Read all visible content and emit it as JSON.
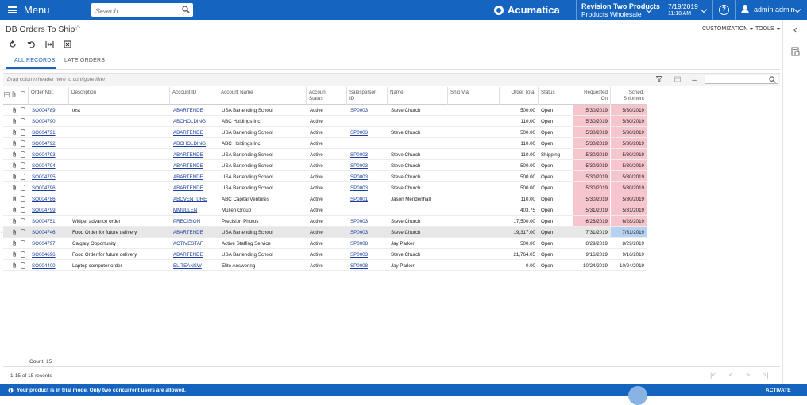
{
  "topbar": {
    "menu_label": "Menu",
    "search_placeholder": "Search...",
    "brand": "Acumatica",
    "tenant": "Revision Two Products",
    "branch": "Products Wholesale",
    "date": "7/19/2019",
    "time": "11:18 AM",
    "help": "?",
    "user": "admin admin"
  },
  "page": {
    "title": "DB Orders To Ship",
    "customization": "CUSTOMIZATION",
    "tools": "TOOLS"
  },
  "tabs": [
    "ALL RECORDS",
    "LATE ORDERS"
  ],
  "filter": {
    "hint": "Drag column header here to configure filter",
    "more": "..."
  },
  "grid": {
    "headers": {
      "order_nbr": "Order Nbr.",
      "description": "Description",
      "account_id": "Account ID",
      "account_name": "Account Name",
      "account_status_1": "Account",
      "account_status_2": "Status",
      "salesperson_1": "Salesperson",
      "salesperson_2": "ID",
      "name": "Name",
      "ship_via": "Ship Via",
      "order_total": "Order Total",
      "status": "Status",
      "requested_1": "Requested",
      "requested_2": "On",
      "sched_1": "Sched.",
      "sched_2": "Shipment"
    },
    "rows": [
      {
        "order": "SO004789",
        "desc": "test",
        "acct": "ABARTENDE",
        "acct_name": "USA Bartending School",
        "acct_status": "Active",
        "sp": "SP0003",
        "name": "Steve Church",
        "total": "500.00",
        "status": "Open",
        "req": "5/30/2019",
        "sched": "5/30/2019",
        "late": true
      },
      {
        "order": "SO004790",
        "desc": "",
        "acct": "ABCHOLDING",
        "acct_name": "ABC Holdings Inc",
        "acct_status": "Active",
        "sp": "",
        "name": "",
        "total": "110.00",
        "status": "Open",
        "req": "5/30/2019",
        "sched": "5/30/2019",
        "late": true
      },
      {
        "order": "SO004791",
        "desc": "",
        "acct": "ABARTENDE",
        "acct_name": "USA Bartending School",
        "acct_status": "Active",
        "sp": "SP0003",
        "name": "Steve Church",
        "total": "500.00",
        "status": "Open",
        "req": "5/30/2019",
        "sched": "5/30/2019",
        "late": true
      },
      {
        "order": "SO004792",
        "desc": "",
        "acct": "ABCHOLDING",
        "acct_name": "ABC Holdings Inc",
        "acct_status": "Active",
        "sp": "",
        "name": "",
        "total": "110.00",
        "status": "Open",
        "req": "5/30/2019",
        "sched": "5/30/2019",
        "late": true
      },
      {
        "order": "SO004793",
        "desc": "",
        "acct": "ABARTENDE",
        "acct_name": "USA Bartending School",
        "acct_status": "Active",
        "sp": "SP0003",
        "name": "Steve Church",
        "total": "110.00",
        "status": "Shipping",
        "req": "5/30/2019",
        "sched": "5/30/2019",
        "late": true
      },
      {
        "order": "SO004794",
        "desc": "",
        "acct": "ABARTENDE",
        "acct_name": "USA Bartending School",
        "acct_status": "Active",
        "sp": "SP0003",
        "name": "Steve Church",
        "total": "500.00",
        "status": "Open",
        "req": "5/30/2019",
        "sched": "5/30/2019",
        "late": true
      },
      {
        "order": "SO004795",
        "desc": "",
        "acct": "ABARTENDE",
        "acct_name": "USA Bartending School",
        "acct_status": "Active",
        "sp": "SP0003",
        "name": "Steve Church",
        "total": "500.00",
        "status": "Open",
        "req": "5/30/2019",
        "sched": "5/30/2019",
        "late": true
      },
      {
        "order": "SO004796",
        "desc": "",
        "acct": "ABARTENDE",
        "acct_name": "USA Bartending School",
        "acct_status": "Active",
        "sp": "SP0003",
        "name": "Steve Church",
        "total": "500.00",
        "status": "Open",
        "req": "5/30/2019",
        "sched": "5/30/2019",
        "late": true
      },
      {
        "order": "SO004786",
        "desc": "",
        "acct": "ABCVENTURE",
        "acct_name": "ABC Capital Ventures",
        "acct_status": "Active",
        "sp": "SP0001",
        "name": "Jason Mendenhall",
        "total": "110.00",
        "status": "Open",
        "req": "5/30/2019",
        "sched": "5/30/2019",
        "late": true
      },
      {
        "order": "SO004799",
        "desc": "",
        "acct": "MMULLEN",
        "acct_name": "Mullen Group",
        "acct_status": "Active",
        "sp": "",
        "name": "",
        "total": "403.75",
        "status": "Open",
        "req": "5/31/2019",
        "sched": "5/31/2019",
        "late": true
      },
      {
        "order": "SO004751",
        "desc": "Widget advance order",
        "acct": "PRECISION",
        "acct_name": "Precision Photos",
        "acct_status": "Active",
        "sp": "SP0003",
        "name": "Steve Church",
        "total": "17,500.00",
        "status": "Open",
        "req": "6/28/2019",
        "sched": "6/28/2019",
        "late": true
      },
      {
        "order": "SO004746",
        "desc": "Food Order for future delivery",
        "acct": "ABARTENDE",
        "acct_name": "USA Bartending School",
        "acct_status": "Active",
        "sp": "SP0003",
        "name": "Steve Church",
        "total": "19,317.00",
        "status": "Open",
        "req": "7/31/2019",
        "sched": "7/31/2019",
        "late": false,
        "selected": true
      },
      {
        "order": "SO004797",
        "desc": "Calgary Opportunity",
        "acct": "ACTIVESTAF",
        "acct_name": "Active Staffing Service",
        "acct_status": "Active",
        "sp": "SP0008",
        "name": "Jay Parker",
        "total": "500.00",
        "status": "Open",
        "req": "8/29/2019",
        "sched": "8/29/2019",
        "late": false
      },
      {
        "order": "SO004696",
        "desc": "Food Order for future delivery",
        "acct": "ABARTENDE",
        "acct_name": "USA Bartending School",
        "acct_status": "Active",
        "sp": "SP0003",
        "name": "Steve Church",
        "total": "21,764.05",
        "status": "Open",
        "req": "9/16/2019",
        "sched": "9/16/2019",
        "late": false
      },
      {
        "order": "SO004400",
        "desc": "Laptop computer order",
        "acct": "ELITEANSW",
        "acct_name": "Elite Answering",
        "acct_status": "Active",
        "sp": "SP0008",
        "name": "Jay Parker",
        "total": "0.00",
        "status": "Open",
        "req": "10/24/2019",
        "sched": "10/24/2019",
        "late": false
      }
    ]
  },
  "footer": {
    "count": "Count: 15",
    "records": "1-15 of 15 records",
    "pager": [
      "|<",
      "<",
      ">",
      ">|"
    ]
  },
  "trial": {
    "message": "Your product is in trial mode. Only two concurrent users are allowed.",
    "activate": "ACTIVATE"
  },
  "colors": {
    "brand_blue": "#1565c0",
    "late_highlight": "#f7c5cc",
    "selected_cell": "#b5d3f0",
    "link": "#1a3fa0"
  }
}
